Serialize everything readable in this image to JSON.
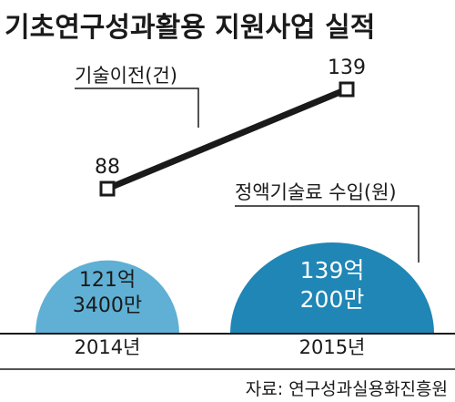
{
  "chart_data": [
    {
      "type": "line",
      "title": "기초연구성과활용 지원사업 실적",
      "series": [
        {
          "name": "기술이전(건)",
          "x": [
            "2014년",
            "2015년"
          ],
          "values": [
            88,
            139
          ]
        }
      ],
      "data_labels": [
        "88",
        "139"
      ]
    },
    {
      "type": "area",
      "series": [
        {
          "name": "정액기술료 수입(원)",
          "x": [
            "2014년",
            "2015년"
          ],
          "values": [
            121.34,
            139.02
          ],
          "unit": "억원"
        }
      ],
      "data_labels": [
        {
          "line1": "121억",
          "line2": "3400만"
        },
        {
          "line1": "139억",
          "line2": "200만"
        }
      ],
      "categories": [
        "2014년",
        "2015년"
      ],
      "colors": [
        "#5fb0d4",
        "#1f86b5"
      ]
    }
  ],
  "source": "자료: 연구성과실용화진흥원"
}
